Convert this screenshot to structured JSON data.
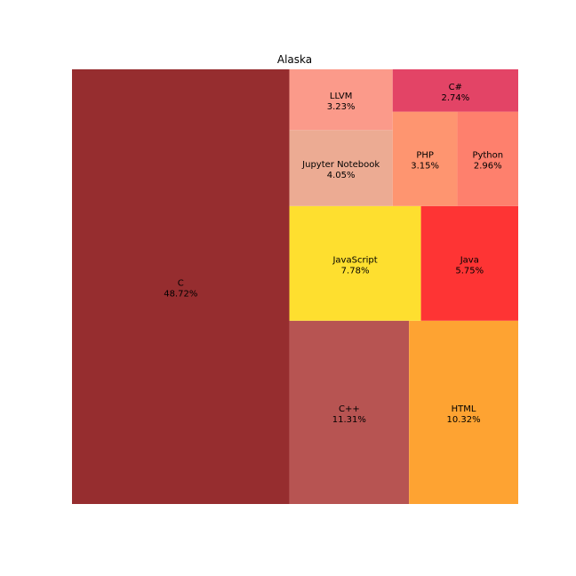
{
  "chart_data": {
    "type": "treemap",
    "title": "Alaska",
    "items": [
      {
        "label": "C",
        "value": 48.72,
        "value_label": "48.72%",
        "color": "#962d2f"
      },
      {
        "label": "C++",
        "value": 11.31,
        "value_label": "11.31%",
        "color": "#b75452"
      },
      {
        "label": "HTML",
        "value": 10.32,
        "value_label": "10.32%",
        "color": "#fea332"
      },
      {
        "label": "JavaScript",
        "value": 7.78,
        "value_label": "7.78%",
        "color": "#fedf2f"
      },
      {
        "label": "Java",
        "value": 5.75,
        "value_label": "5.75%",
        "color": "#fe3434"
      },
      {
        "label": "Jupyter Notebook",
        "value": 4.05,
        "value_label": "4.05%",
        "color": "#ecab93"
      },
      {
        "label": "LLVM",
        "value": 3.23,
        "value_label": "3.23%",
        "color": "#fb9a8a"
      },
      {
        "label": "PHP",
        "value": 3.15,
        "value_label": "3.15%",
        "color": "#fe9570"
      },
      {
        "label": "Python",
        "value": 2.96,
        "value_label": "2.96%",
        "color": "#fe806d"
      },
      {
        "label": "C#",
        "value": 2.74,
        "value_label": "2.74%",
        "color": "#e34466"
      }
    ]
  }
}
